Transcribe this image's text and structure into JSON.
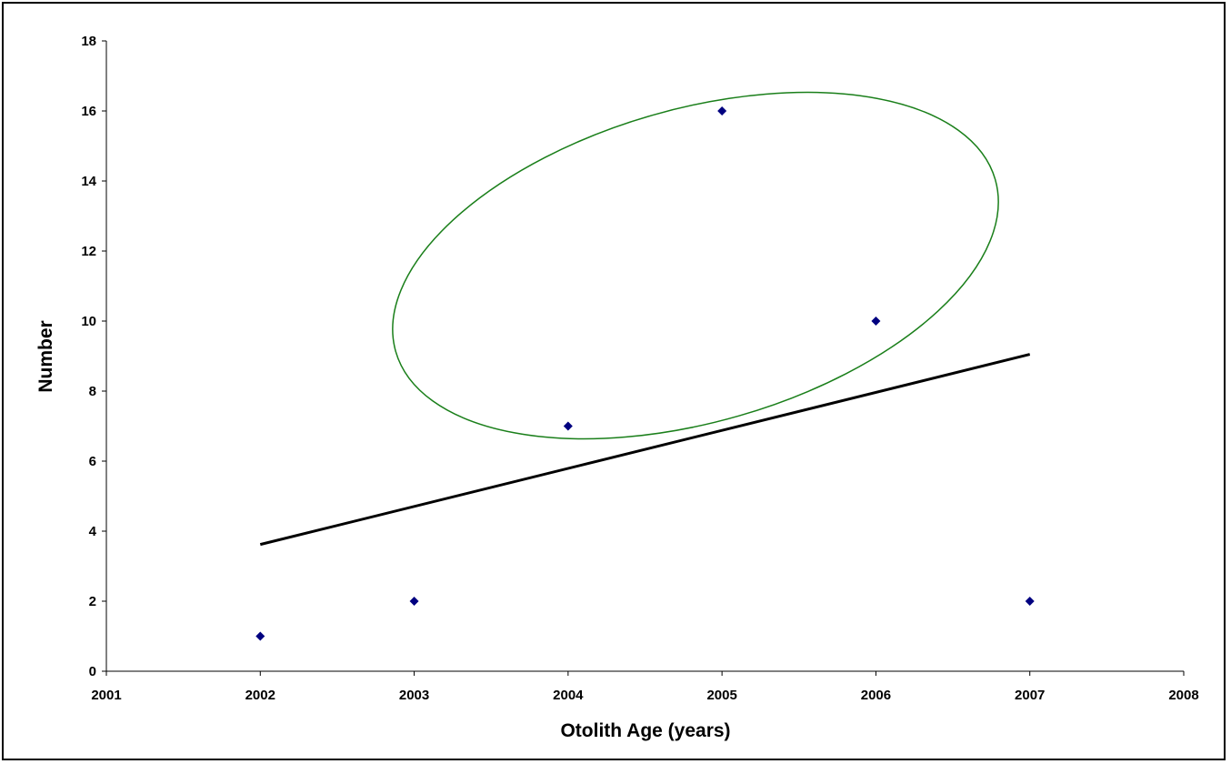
{
  "chart_data": {
    "type": "scatter",
    "title": "",
    "xlabel": "Otolith Age (years)",
    "ylabel": "Number",
    "xlim": [
      2001,
      2008
    ],
    "ylim": [
      0,
      18
    ],
    "x_ticks": [
      "2001",
      "2002",
      "2003",
      "2004",
      "2005",
      "2006",
      "2007",
      "2008"
    ],
    "y_ticks": [
      "0",
      "2",
      "4",
      "6",
      "8",
      "10",
      "12",
      "14",
      "16",
      "18"
    ],
    "grid": false,
    "legend": "none",
    "series": [
      {
        "x": [
          2002,
          2003,
          2004,
          2005,
          2006,
          2007
        ],
        "y": [
          1,
          2,
          7,
          16,
          10,
          2
        ],
        "marker": "diamond",
        "color": "#000080"
      }
    ],
    "trendline": {
      "type": "linear",
      "x": [
        2002,
        2007
      ],
      "y": [
        3.62,
        9.05
      ],
      "color": "#000000"
    },
    "annotation": {
      "shape": "ellipse",
      "color": "#1a7f1a",
      "encloses_x": [
        2004,
        2005,
        2006
      ]
    }
  }
}
